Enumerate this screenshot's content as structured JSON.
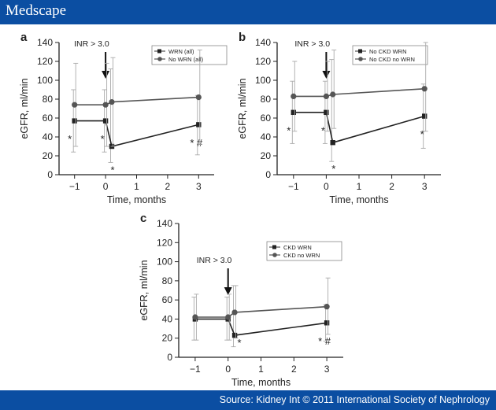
{
  "header": {
    "logo": "Medscape"
  },
  "footer": {
    "source": "Source: Kidney Int © 2011 International Society of Nephrology"
  },
  "chart_data": [
    {
      "type": "line",
      "panel": "a",
      "annotation": "INR > 3.0",
      "xlabel": "Time, months",
      "ylabel": "eGFR, ml/min",
      "xlim": [
        -1.5,
        3.5
      ],
      "ylim": [
        0,
        140
      ],
      "xticks": [
        -1,
        0,
        1,
        2,
        3
      ],
      "yticks": [
        0,
        20,
        40,
        60,
        80,
        100,
        120,
        140
      ],
      "series": [
        {
          "name": "WRN (all)",
          "marker": "square",
          "x": [
            -1,
            0,
            0.2,
            3
          ],
          "y": [
            57,
            57,
            30,
            53
          ],
          "err_up": [
            90,
            90,
            112,
            84
          ],
          "err_low": [
            24,
            24,
            13,
            21
          ],
          "stars": [
            "*",
            "*",
            "*",
            "* #"
          ]
        },
        {
          "name": "No WRN (all)",
          "marker": "circle",
          "x": [
            -1,
            0,
            0.2,
            3
          ],
          "y": [
            74,
            74,
            77,
            82
          ],
          "err_up": [
            118,
            118,
            124,
            132
          ],
          "err_low": [
            30,
            30,
            30,
            32
          ]
        }
      ]
    },
    {
      "type": "line",
      "panel": "b",
      "annotation": "INR > 3.0",
      "xlabel": "Time, months",
      "ylabel": "eGFR, ml/min",
      "xlim": [
        -1.5,
        3.5
      ],
      "ylim": [
        0,
        140
      ],
      "xticks": [
        -1,
        0,
        1,
        2,
        3
      ],
      "yticks": [
        0,
        20,
        40,
        60,
        80,
        100,
        120,
        140
      ],
      "series": [
        {
          "name": "No CKD WRN",
          "marker": "square",
          "x": [
            -1,
            0,
            0.2,
            3
          ],
          "y": [
            66,
            66,
            34,
            62
          ],
          "err_up": [
            99,
            99,
            122,
            96
          ],
          "err_low": [
            33,
            33,
            14,
            28
          ],
          "stars": [
            "*",
            "*",
            "*",
            "*"
          ]
        },
        {
          "name": "No CKD no WRN",
          "marker": "circle",
          "x": [
            -1,
            0,
            0.2,
            3
          ],
          "y": [
            83,
            83,
            85,
            91
          ],
          "err_up": [
            120,
            120,
            132,
            140
          ],
          "err_low": [
            46,
            46,
            49,
            46
          ]
        }
      ]
    },
    {
      "type": "line",
      "panel": "c",
      "annotation": "INR > 3.0",
      "xlabel": "Time, months",
      "ylabel": "eGFR, ml/min",
      "xlim": [
        -1.5,
        3.5
      ],
      "ylim": [
        0,
        140
      ],
      "xticks": [
        -1,
        0,
        1,
        2,
        3
      ],
      "yticks": [
        0,
        20,
        40,
        60,
        80,
        100,
        120,
        140
      ],
      "series": [
        {
          "name": "CKD WRN",
          "marker": "square",
          "x": [
            -1,
            0,
            0.2,
            3
          ],
          "y": [
            40,
            40,
            23,
            36
          ],
          "err_up": [
            63,
            63,
            75,
            55
          ],
          "err_low": [
            18,
            18,
            11,
            17
          ],
          "stars": [
            "",
            "",
            "*",
            "* #"
          ]
        },
        {
          "name": "CKD no WRN",
          "marker": "circle",
          "x": [
            -1,
            0,
            0.2,
            3
          ],
          "y": [
            42,
            42,
            47,
            53
          ],
          "err_up": [
            66,
            66,
            75,
            83
          ],
          "err_low": [
            18,
            18,
            20,
            24
          ]
        }
      ]
    }
  ]
}
